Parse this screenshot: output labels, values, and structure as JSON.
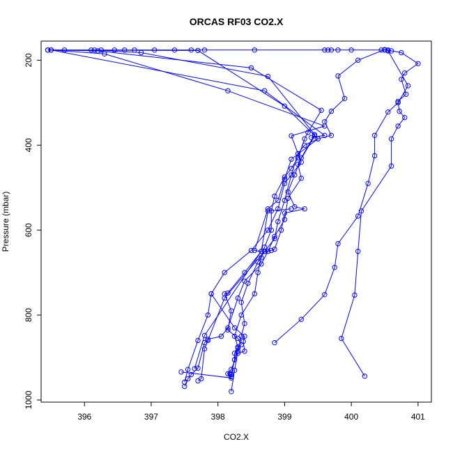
{
  "chart_data": {
    "type": "line",
    "title": "ORCAS RF03 CO2.X",
    "xlabel": "CO2.X",
    "ylabel": "Pressure (mbar)",
    "xlim": [
      395.35,
      401.2
    ],
    "ylim": [
      1005,
      155
    ],
    "y_reversed": true,
    "x_ticks": [
      396,
      397,
      398,
      399,
      400,
      401
    ],
    "y_ticks": [
      200,
      400,
      600,
      800,
      1000
    ],
    "grid": false,
    "legend": "none",
    "marker": "open-circle",
    "color": "#0000ff",
    "series": [
      {
        "values": [
          [
            398.2,
            980
          ],
          [
            398.25,
            930
          ],
          [
            398.3,
            885
          ],
          [
            398.35,
            850
          ],
          [
            398.4,
            820
          ],
          [
            398.35,
            770
          ],
          [
            398.45,
            725
          ],
          [
            398.6,
            675
          ],
          [
            398.7,
            650
          ],
          [
            398.85,
            620
          ],
          [
            398.9,
            580
          ],
          [
            399.0,
            530
          ],
          [
            399.1,
            470
          ],
          [
            399.2,
            420
          ],
          [
            399.3,
            400
          ],
          [
            399.5,
            385
          ],
          [
            399.7,
            377
          ],
          [
            399.6,
            345
          ],
          [
            399.7,
            320
          ],
          [
            399.9,
            290
          ],
          [
            399.8,
            237
          ],
          [
            400.1,
            200
          ],
          [
            400.5,
            175
          ],
          [
            400.75,
            182
          ],
          [
            401.0,
            208
          ],
          [
            400.8,
            230
          ],
          [
            400.75,
            245
          ],
          [
            400.82,
            280
          ],
          [
            400.7,
            297
          ],
          [
            400.72,
            320
          ],
          [
            400.8,
            335
          ],
          [
            400.7,
            355
          ],
          [
            400.6,
            385
          ],
          [
            400.6,
            449
          ],
          [
            400.15,
            555
          ],
          [
            400.1,
            650
          ],
          [
            400.05,
            753
          ],
          [
            399.85,
            855
          ],
          [
            400.2,
            944
          ]
        ]
      },
      {
        "values": [
          [
            398.85,
            865
          ],
          [
            399.25,
            810
          ],
          [
            399.6,
            752
          ],
          [
            399.75,
            688
          ],
          [
            399.8,
            632
          ],
          [
            400.1,
            567
          ],
          [
            400.25,
            490
          ],
          [
            400.35,
            425
          ],
          [
            400.35,
            377
          ],
          [
            400.55,
            322
          ],
          [
            400.7,
            300
          ],
          [
            400.85,
            260
          ],
          [
            400.55,
            178
          ],
          [
            400.6,
            178
          ],
          [
            400.55,
            176
          ],
          [
            400.5,
            176
          ],
          [
            400.45,
            176
          ],
          [
            400.0,
            176
          ],
          [
            399.8,
            176
          ],
          [
            399.7,
            176
          ],
          [
            399.65,
            176
          ],
          [
            399.6,
            176
          ],
          [
            398.55,
            176
          ],
          [
            397.8,
            176
          ],
          [
            397.6,
            176
          ],
          [
            397.35,
            176
          ],
          [
            397.05,
            176
          ],
          [
            396.75,
            176
          ],
          [
            396.6,
            176
          ],
          [
            396.45,
            176
          ],
          [
            396.25,
            176
          ],
          [
            396.1,
            176
          ],
          [
            395.7,
            176
          ],
          [
            395.5,
            176
          ],
          [
            395.45,
            176
          ]
        ]
      },
      {
        "values": [
          [
            395.45,
            176
          ],
          [
            396.2,
            178
          ],
          [
            398.5,
            218
          ],
          [
            399.55,
            318
          ],
          [
            399.35,
            370
          ],
          [
            399.3,
            385
          ],
          [
            399.2,
            430
          ],
          [
            399.1,
            455
          ],
          [
            399.0,
            475
          ],
          [
            398.85,
            520
          ],
          [
            398.8,
            555
          ],
          [
            398.8,
            600
          ],
          [
            398.7,
            640
          ],
          [
            398.65,
            665
          ],
          [
            398.6,
            700
          ],
          [
            398.55,
            750
          ],
          [
            398.35,
            800
          ],
          [
            398.25,
            850
          ],
          [
            398.3,
            875
          ],
          [
            398.25,
            905
          ],
          [
            398.2,
            940
          ],
          [
            398.2,
            945
          ],
          [
            398.18,
            938
          ]
        ]
      },
      {
        "values": [
          [
            395.5,
            176
          ],
          [
            396.3,
            185
          ],
          [
            398.15,
            272
          ],
          [
            399.6,
            355
          ],
          [
            399.1,
            378
          ],
          [
            399.25,
            440
          ],
          [
            399.0,
            490
          ],
          [
            398.9,
            550
          ],
          [
            398.75,
            600
          ],
          [
            398.5,
            648
          ],
          [
            398.1,
            700
          ],
          [
            397.9,
            750
          ],
          [
            397.85,
            800
          ],
          [
            397.7,
            860
          ],
          [
            397.55,
            928
          ],
          [
            397.5,
            958
          ]
        ]
      },
      {
        "values": [
          [
            396.15,
            176
          ],
          [
            396.85,
            182
          ],
          [
            398.75,
            238
          ],
          [
            399.45,
            375
          ],
          [
            399.25,
            430
          ],
          [
            399.15,
            470
          ],
          [
            399.05,
            510
          ],
          [
            399.15,
            545
          ],
          [
            399.3,
            550
          ],
          [
            399.0,
            560
          ],
          [
            398.95,
            600
          ],
          [
            398.85,
            645
          ],
          [
            398.8,
            648
          ],
          [
            398.7,
            650
          ],
          [
            398.1,
            760
          ],
          [
            397.85,
            860
          ],
          [
            397.8,
            880
          ],
          [
            397.75,
            950
          ],
          [
            397.7,
            955
          ]
        ]
      },
      {
        "values": [
          [
            395.5,
            176
          ],
          [
            398.7,
            272
          ],
          [
            399.6,
            377
          ],
          [
            399.4,
            382
          ],
          [
            399.45,
            378
          ],
          [
            399.2,
            445
          ],
          [
            399.25,
            478
          ],
          [
            399.05,
            525
          ],
          [
            399.0,
            575
          ],
          [
            398.85,
            615
          ],
          [
            398.75,
            650
          ],
          [
            398.65,
            680
          ],
          [
            398.4,
            720
          ],
          [
            398.3,
            760
          ],
          [
            398.15,
            830
          ],
          [
            398.05,
            850
          ],
          [
            397.85,
            857
          ],
          [
            397.8,
            865
          ],
          [
            397.7,
            925
          ],
          [
            397.6,
            940
          ],
          [
            397.55,
            950
          ],
          [
            397.5,
            968
          ]
        ]
      },
      {
        "values": [
          [
            395.45,
            176
          ],
          [
            397.7,
            177
          ],
          [
            399.0,
            308
          ],
          [
            399.5,
            385
          ],
          [
            399.1,
            433
          ],
          [
            399.0,
            480
          ],
          [
            398.9,
            530
          ],
          [
            398.75,
            550
          ],
          [
            398.55,
            648
          ],
          [
            398.65,
            650
          ],
          [
            398.4,
            700
          ],
          [
            398.15,
            748
          ],
          [
            398.1,
            750
          ],
          [
            398.2,
            790
          ],
          [
            398.15,
            835
          ],
          [
            398.3,
            855
          ],
          [
            398.35,
            870
          ],
          [
            398.3,
            878
          ],
          [
            398.25,
            890
          ],
          [
            398.25,
            905
          ],
          [
            398.2,
            940
          ]
        ]
      },
      {
        "values": [
          [
            397.9,
            750
          ],
          [
            398.25,
            830
          ],
          [
            398.4,
            850
          ],
          [
            398.38,
            862
          ],
          [
            398.4,
            885
          ],
          [
            398.3,
            890
          ],
          [
            398.2,
            928
          ],
          [
            398.15,
            938
          ],
          [
            398.2,
            948
          ],
          [
            397.45,
            934
          ]
        ]
      },
      {
        "values": [
          [
            399.1,
            550
          ],
          [
            398.75,
            555
          ],
          [
            398.65,
            650
          ],
          [
            397.8,
            848
          ],
          [
            397.65,
            926
          ]
        ]
      }
    ]
  }
}
